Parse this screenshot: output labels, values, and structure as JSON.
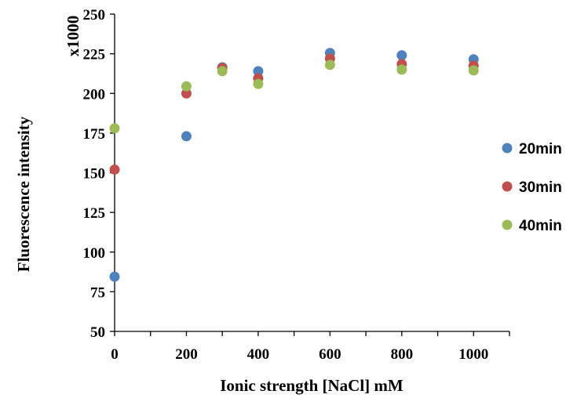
{
  "chart_data": {
    "type": "scatter",
    "xlabel": "Ionic strength [NaCl] mM",
    "ylabel": "Fluorescence  intensity",
    "y_multiplier_label": "x1000",
    "xlim": [
      0,
      1100
    ],
    "ylim": [
      50,
      250
    ],
    "x_ticks": [
      0,
      200,
      400,
      600,
      800,
      1000
    ],
    "y_ticks": [
      50,
      75,
      100,
      125,
      150,
      175,
      200,
      225,
      250
    ],
    "grid": false,
    "legend_position": "right",
    "series": [
      {
        "name": "20min",
        "color": "#4F81BD",
        "points": [
          {
            "x": 0,
            "y": 84.5
          },
          {
            "x": 200,
            "y": 173
          },
          {
            "x": 300,
            "y": 216.5
          },
          {
            "x": 400,
            "y": 214
          },
          {
            "x": 600,
            "y": 225.5
          },
          {
            "x": 800,
            "y": 224
          },
          {
            "x": 1000,
            "y": 221.5
          }
        ]
      },
      {
        "name": "30min",
        "color": "#C0504D",
        "points": [
          {
            "x": 0,
            "y": 152
          },
          {
            "x": 200,
            "y": 200
          },
          {
            "x": 300,
            "y": 216
          },
          {
            "x": 400,
            "y": 209.5
          },
          {
            "x": 600,
            "y": 222
          },
          {
            "x": 800,
            "y": 218.5
          },
          {
            "x": 1000,
            "y": 217.5
          }
        ]
      },
      {
        "name": "40min",
        "color": "#9BBB59",
        "points": [
          {
            "x": 0,
            "y": 178
          },
          {
            "x": 200,
            "y": 204.5
          },
          {
            "x": 300,
            "y": 214
          },
          {
            "x": 400,
            "y": 206
          },
          {
            "x": 600,
            "y": 218
          },
          {
            "x": 800,
            "y": 215
          },
          {
            "x": 1000,
            "y": 214.5
          }
        ]
      }
    ]
  }
}
